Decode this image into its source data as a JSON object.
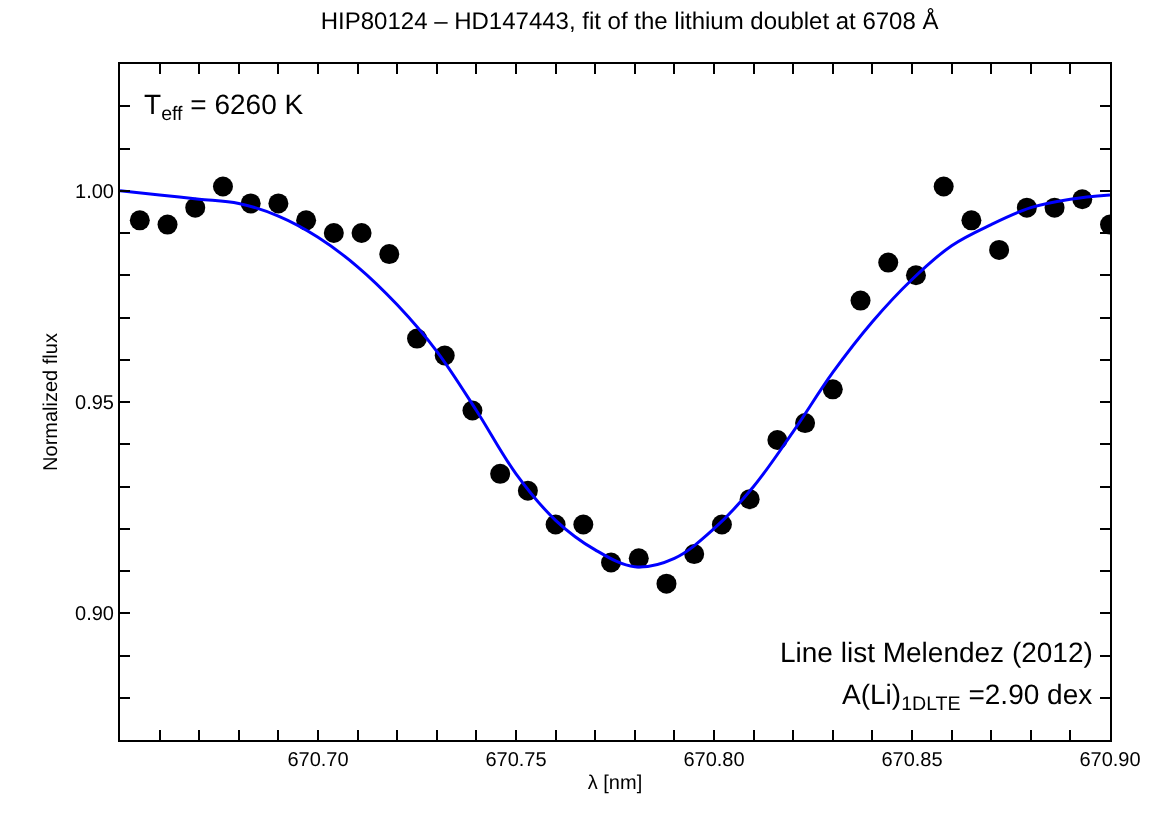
{
  "chart_data": {
    "type": "scatter",
    "title": "HIP80124 – HD147443, fit of the lithium doublet at 6708 Å",
    "xlabel": "λ [nm]",
    "ylabel": "Normalized flux",
    "xlim": [
      670.65,
      670.9
    ],
    "ylim": [
      0.87,
      1.03
    ],
    "xticks": [
      {
        "value": 670.65,
        "label": null
      },
      {
        "value": 670.66,
        "label": null
      },
      {
        "value": 670.67,
        "label": null
      },
      {
        "value": 670.68,
        "label": null
      },
      {
        "value": 670.69,
        "label": null
      },
      {
        "value": 670.7,
        "label": "670.70"
      },
      {
        "value": 670.71,
        "label": null
      },
      {
        "value": 670.72,
        "label": null
      },
      {
        "value": 670.73,
        "label": null
      },
      {
        "value": 670.74,
        "label": null
      },
      {
        "value": 670.75,
        "label": "670.75"
      },
      {
        "value": 670.76,
        "label": null
      },
      {
        "value": 670.77,
        "label": null
      },
      {
        "value": 670.78,
        "label": null
      },
      {
        "value": 670.79,
        "label": null
      },
      {
        "value": 670.8,
        "label": "670.80"
      },
      {
        "value": 670.81,
        "label": null
      },
      {
        "value": 670.82,
        "label": null
      },
      {
        "value": 670.83,
        "label": null
      },
      {
        "value": 670.84,
        "label": null
      },
      {
        "value": 670.85,
        "label": "670.85"
      },
      {
        "value": 670.86,
        "label": null
      },
      {
        "value": 670.87,
        "label": null
      },
      {
        "value": 670.88,
        "label": null
      },
      {
        "value": 670.89,
        "label": null
      },
      {
        "value": 670.9,
        "label": "670.90"
      }
    ],
    "yticks": [
      {
        "value": 0.88,
        "label": null
      },
      {
        "value": 0.89,
        "label": null
      },
      {
        "value": 0.9,
        "label": "0.90"
      },
      {
        "value": 0.91,
        "label": null
      },
      {
        "value": 0.92,
        "label": null
      },
      {
        "value": 0.93,
        "label": null
      },
      {
        "value": 0.94,
        "label": null
      },
      {
        "value": 0.95,
        "label": "0.95"
      },
      {
        "value": 0.96,
        "label": null
      },
      {
        "value": 0.97,
        "label": null
      },
      {
        "value": 0.98,
        "label": null
      },
      {
        "value": 0.99,
        "label": null
      },
      {
        "value": 1.0,
        "label": "1.00"
      },
      {
        "value": 1.01,
        "label": null
      },
      {
        "value": 1.02,
        "label": null
      }
    ],
    "series": [
      {
        "marker": "circle",
        "color": "#000000",
        "x": [
          670.655,
          670.662,
          670.669,
          670.676,
          670.683,
          670.69,
          670.697,
          670.704,
          670.711,
          670.718,
          670.725,
          670.732,
          670.739,
          670.746,
          670.753,
          670.76,
          670.767,
          670.774,
          670.781,
          670.788,
          670.795,
          670.802,
          670.809,
          670.816,
          670.823,
          670.83,
          670.837,
          670.844,
          670.851,
          670.858,
          670.865,
          670.872,
          670.879,
          670.886,
          670.893,
          670.9
        ],
        "values": [
          0.993,
          0.992,
          0.996,
          1.001,
          0.997,
          0.997,
          0.993,
          0.99,
          0.99,
          0.985,
          0.965,
          0.961,
          0.948,
          0.933,
          0.929,
          0.921,
          0.921,
          0.912,
          0.913,
          0.907,
          0.914,
          0.921,
          0.927,
          0.941,
          0.945,
          0.953,
          0.974,
          0.983,
          0.98,
          1.001,
          0.993,
          0.986,
          0.996,
          0.996,
          0.998,
          0.992
        ]
      },
      {
        "type": "line",
        "color": "#0000ff",
        "line_style": "solid",
        "x": [
          670.65,
          670.66,
          670.67,
          670.68,
          670.69,
          670.7,
          670.71,
          670.72,
          670.73,
          670.74,
          670.75,
          670.76,
          670.77,
          670.78,
          670.79,
          670.8,
          670.81,
          670.82,
          670.83,
          670.84,
          670.85,
          670.86,
          670.87,
          670.88,
          670.89,
          670.9
        ],
        "values": [
          1.0,
          0.999,
          0.998,
          0.997,
          0.994,
          0.989,
          0.982,
          0.973,
          0.962,
          0.948,
          0.933,
          0.922,
          0.915,
          0.911,
          0.913,
          0.92,
          0.93,
          0.943,
          0.957,
          0.969,
          0.979,
          0.987,
          0.992,
          0.996,
          0.998,
          0.999
        ]
      }
    ],
    "annotations": [
      "T$_{eff}$ = 6260 K",
      "Line list Melendez (2012)",
      "A(Li)$_{1DLTE}$ =2.90 dex"
    ]
  }
}
